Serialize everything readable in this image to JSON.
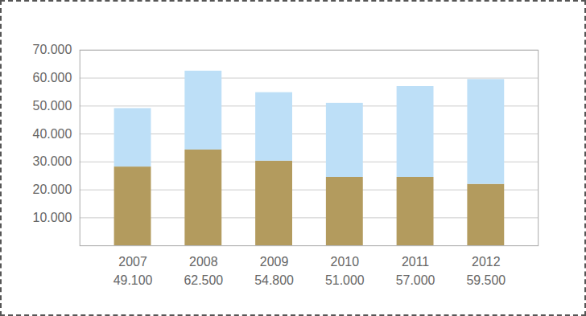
{
  "chart_data": {
    "type": "bar",
    "stacked": true,
    "grid": true,
    "categories": [
      "2007\n49.100",
      "2008\n62.500",
      "2009\n54.800",
      "2010\n51.000",
      "2011\n57.000",
      "2012\n59.500"
    ],
    "series": [
      {
        "color": "#b39b5e",
        "values": [
          28200,
          34300,
          30300,
          24500,
          24500,
          22000
        ]
      },
      {
        "color": "#bddff7",
        "values": [
          20900,
          28200,
          24500,
          26500,
          32500,
          37500
        ]
      }
    ],
    "ylim": [
      0,
      70000
    ],
    "yticks": [
      {
        "value": 10000,
        "label": "10.000"
      },
      {
        "value": 20000,
        "label": "20.000"
      },
      {
        "value": 30000,
        "label": "30.000"
      },
      {
        "value": 40000,
        "label": "40.000"
      },
      {
        "value": 50000,
        "label": "50.000"
      },
      {
        "value": 60000,
        "label": "60.000"
      },
      {
        "value": 70000,
        "label": "70.000"
      }
    ]
  }
}
